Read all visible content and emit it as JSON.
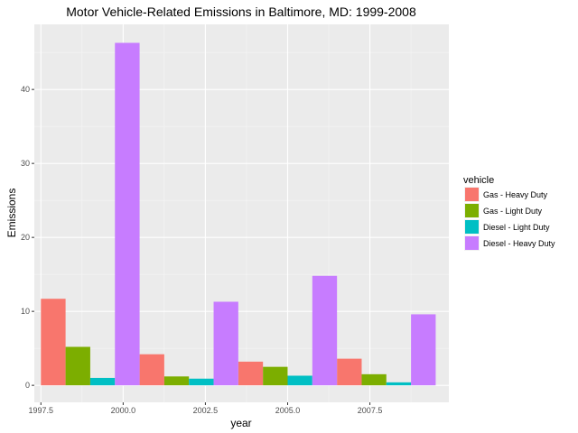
{
  "chart_data": {
    "type": "bar",
    "title": "Motor Vehicle-Related Emissions in Baltimore, MD: 1999-2008",
    "xlabel": "year",
    "ylabel": "Emissions",
    "xlim": [
      1997.3,
      2009.9
    ],
    "ylim": [
      -2.3,
      48.8
    ],
    "x_ticks": [
      1997.5,
      2000.0,
      2002.5,
      2005.0,
      2007.5
    ],
    "x_tick_labels": [
      "1997.5",
      "2000.0",
      "2002.5",
      "2005.0",
      "2007.5"
    ],
    "y_ticks": [
      0,
      10,
      20,
      30,
      40
    ],
    "y_tick_labels": [
      "0",
      "10",
      "20",
      "30",
      "40"
    ],
    "grid": true,
    "legend": {
      "title": "vehicle",
      "placement": "right"
    },
    "bar_group_width": 3,
    "series": [
      {
        "name": "Gas - Heavy Duty",
        "color": "#F8766D",
        "x": [
          1999,
          2002,
          2005,
          2008
        ],
        "values": [
          11.7,
          4.2,
          3.2,
          3.6
        ]
      },
      {
        "name": "Gas - Light Duty",
        "color": "#7CAE00",
        "x": [
          1999,
          2002,
          2005,
          2008
        ],
        "values": [
          5.2,
          1.2,
          2.5,
          1.5
        ]
      },
      {
        "name": "Diesel - Light Duty",
        "color": "#00BFC4",
        "x": [
          1999,
          2002,
          2005,
          2008
        ],
        "values": [
          1.0,
          0.9,
          1.3,
          0.4
        ]
      },
      {
        "name": "Diesel - Heavy Duty",
        "color": "#C77CFF",
        "x": [
          1999,
          2002,
          2005,
          2008
        ],
        "values": [
          46.3,
          11.3,
          14.8,
          9.6
        ]
      }
    ]
  }
}
